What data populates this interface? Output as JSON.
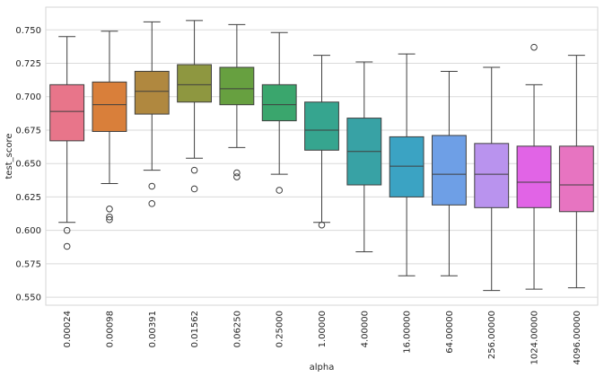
{
  "chart_data": {
    "type": "box",
    "xlabel": "alpha",
    "ylabel": "test_score",
    "ylim": [
      0.544,
      0.767
    ],
    "yticks": [
      0.55,
      0.575,
      0.6,
      0.625,
      0.65,
      0.675,
      0.7,
      0.725,
      0.75
    ],
    "ytick_labels": [
      "0.550",
      "0.575",
      "0.600",
      "0.625",
      "0.650",
      "0.675",
      "0.700",
      "0.725",
      "0.750"
    ],
    "grid": true,
    "categories": [
      "0.00024",
      "0.00098",
      "0.00391",
      "0.01562",
      "0.06250",
      "0.25000",
      "1.00000",
      "4.00000",
      "16.00000",
      "64.00000",
      "256.00000",
      "1024.00000",
      "4096.00000"
    ],
    "boxes": [
      {
        "whisker_low": 0.606,
        "q1": 0.667,
        "median": 0.689,
        "q3": 0.709,
        "whisker_high": 0.745,
        "outliers": [
          0.6,
          0.588
        ],
        "color": "#e8758a"
      },
      {
        "whisker_low": 0.635,
        "q1": 0.674,
        "median": 0.694,
        "q3": 0.711,
        "whisker_high": 0.749,
        "outliers": [
          0.616,
          0.61,
          0.608
        ],
        "color": "#d97f3a"
      },
      {
        "whisker_low": 0.645,
        "q1": 0.687,
        "median": 0.704,
        "q3": 0.719,
        "whisker_high": 0.756,
        "outliers": [
          0.633,
          0.62
        ],
        "color": "#b0883f"
      },
      {
        "whisker_low": 0.654,
        "q1": 0.696,
        "median": 0.709,
        "q3": 0.724,
        "whisker_high": 0.757,
        "outliers": [
          0.645,
          0.631
        ],
        "color": "#8e9740"
      },
      {
        "whisker_low": 0.662,
        "q1": 0.694,
        "median": 0.706,
        "q3": 0.722,
        "whisker_high": 0.754,
        "outliers": [
          0.643,
          0.64
        ],
        "color": "#67a040"
      },
      {
        "whisker_low": 0.642,
        "q1": 0.682,
        "median": 0.694,
        "q3": 0.709,
        "whisker_high": 0.748,
        "outliers": [
          0.63
        ],
        "color": "#3aa66d"
      },
      {
        "whisker_low": 0.606,
        "q1": 0.66,
        "median": 0.675,
        "q3": 0.696,
        "whisker_high": 0.731,
        "outliers": [
          0.604
        ],
        "color": "#36a58f"
      },
      {
        "whisker_low": 0.584,
        "q1": 0.634,
        "median": 0.659,
        "q3": 0.684,
        "whisker_high": 0.726,
        "outliers": [],
        "color": "#38a2a5"
      },
      {
        "whisker_low": 0.566,
        "q1": 0.625,
        "median": 0.648,
        "q3": 0.67,
        "whisker_high": 0.732,
        "outliers": [],
        "color": "#3ba3c3"
      },
      {
        "whisker_low": 0.566,
        "q1": 0.619,
        "median": 0.642,
        "q3": 0.671,
        "whisker_high": 0.719,
        "outliers": [],
        "color": "#6e9fe6"
      },
      {
        "whisker_low": 0.555,
        "q1": 0.617,
        "median": 0.642,
        "q3": 0.665,
        "whisker_high": 0.722,
        "outliers": [],
        "color": "#b993ee"
      },
      {
        "whisker_low": 0.556,
        "q1": 0.617,
        "median": 0.636,
        "q3": 0.663,
        "whisker_high": 0.709,
        "outliers": [
          0.737
        ],
        "color": "#e164e6"
      },
      {
        "whisker_low": 0.557,
        "q1": 0.614,
        "median": 0.634,
        "q3": 0.663,
        "whisker_high": 0.731,
        "outliers": [],
        "color": "#e774c1"
      }
    ]
  }
}
